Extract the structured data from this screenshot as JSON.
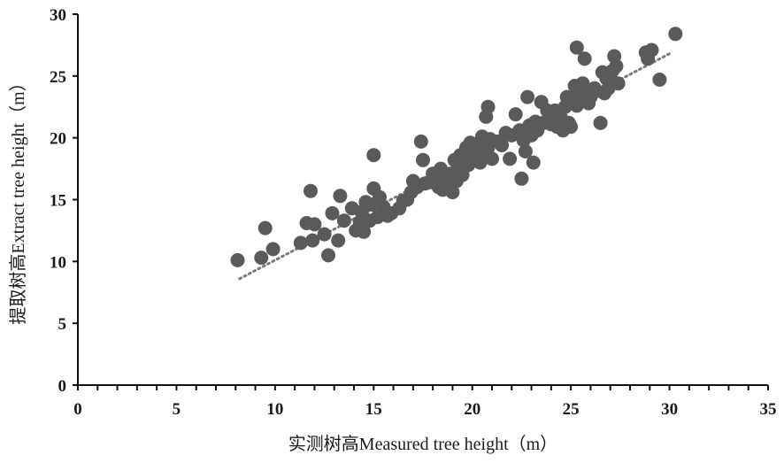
{
  "chart_data": {
    "type": "scatter",
    "title": "",
    "xlabel": "实测树高Measured tree height（m）",
    "ylabel": "提取树高Extract tree height（m）",
    "xlim": [
      0,
      35
    ],
    "ylim": [
      0,
      30
    ],
    "x_ticks": [
      "0",
      "5",
      "10",
      "15",
      "20",
      "25",
      "30",
      "35"
    ],
    "y_ticks": [
      "0",
      "5",
      "10",
      "15",
      "20",
      "25",
      "30"
    ],
    "grid": false,
    "legend": "none",
    "point_color": "#5a5a5a",
    "trendline": {
      "style": "dotted",
      "color": "#7a7a7a",
      "x": [
        8.2,
        30.0
      ],
      "y": [
        8.6,
        26.8
      ]
    },
    "series": [
      {
        "points": [
          [
            8.1,
            10.1
          ],
          [
            9.3,
            10.3
          ],
          [
            9.5,
            12.7
          ],
          [
            9.9,
            11.0
          ],
          [
            11.3,
            11.5
          ],
          [
            11.6,
            13.1
          ],
          [
            11.8,
            15.7
          ],
          [
            11.9,
            11.7
          ],
          [
            12.0,
            13.0
          ],
          [
            12.5,
            12.2
          ],
          [
            12.7,
            10.5
          ],
          [
            12.9,
            13.9
          ],
          [
            13.2,
            11.7
          ],
          [
            13.3,
            15.3
          ],
          [
            13.5,
            13.3
          ],
          [
            13.9,
            14.3
          ],
          [
            14.1,
            12.5
          ],
          [
            14.3,
            13.2
          ],
          [
            14.4,
            14.0
          ],
          [
            14.5,
            12.4
          ],
          [
            14.6,
            14.8
          ],
          [
            14.8,
            13.3
          ],
          [
            14.9,
            14.6
          ],
          [
            15.0,
            15.9
          ],
          [
            15.0,
            18.6
          ],
          [
            15.2,
            13.6
          ],
          [
            15.3,
            15.2
          ],
          [
            15.5,
            14.4
          ],
          [
            15.7,
            13.7
          ],
          [
            15.9,
            13.9
          ],
          [
            16.3,
            14.3
          ],
          [
            16.5,
            14.9
          ],
          [
            16.7,
            15.0
          ],
          [
            16.9,
            15.6
          ],
          [
            17.0,
            16.5
          ],
          [
            17.2,
            16.0
          ],
          [
            17.4,
            19.7
          ],
          [
            17.5,
            18.2
          ],
          [
            17.6,
            16.3
          ],
          [
            17.8,
            16.4
          ],
          [
            18.0,
            17.1
          ],
          [
            18.2,
            16.8
          ],
          [
            18.3,
            16.0
          ],
          [
            18.4,
            17.5
          ],
          [
            18.5,
            15.8
          ],
          [
            18.7,
            16.5
          ],
          [
            18.9,
            17.1
          ],
          [
            19.0,
            15.6
          ],
          [
            19.1,
            18.2
          ],
          [
            19.2,
            16.5
          ],
          [
            19.3,
            17.8
          ],
          [
            19.4,
            18.6
          ],
          [
            19.5,
            17.0
          ],
          [
            19.6,
            18.2
          ],
          [
            19.7,
            19.2
          ],
          [
            19.8,
            17.8
          ],
          [
            19.9,
            19.6
          ],
          [
            20.0,
            18.8
          ],
          [
            20.2,
            18.2
          ],
          [
            20.3,
            19.4
          ],
          [
            20.4,
            18.0
          ],
          [
            20.5,
            20.1
          ],
          [
            20.6,
            18.4
          ],
          [
            20.7,
            21.7
          ],
          [
            20.8,
            22.5
          ],
          [
            20.8,
            19.2
          ],
          [
            20.9,
            19.9
          ],
          [
            21.0,
            18.3
          ],
          [
            21.3,
            19.7
          ],
          [
            21.5,
            19.4
          ],
          [
            21.7,
            20.4
          ],
          [
            21.9,
            18.3
          ],
          [
            22.0,
            20.2
          ],
          [
            22.2,
            21.9
          ],
          [
            22.4,
            20.6
          ],
          [
            22.5,
            16.7
          ],
          [
            22.6,
            19.8
          ],
          [
            22.7,
            18.9
          ],
          [
            22.8,
            23.3
          ],
          [
            22.9,
            21.0
          ],
          [
            23.0,
            20.2
          ],
          [
            23.1,
            18.0
          ],
          [
            23.2,
            21.3
          ],
          [
            23.3,
            20.6
          ],
          [
            23.5,
            22.9
          ],
          [
            23.6,
            21.2
          ],
          [
            23.8,
            22.2
          ],
          [
            23.9,
            21.6
          ],
          [
            24.0,
            21.1
          ],
          [
            24.2,
            22.2
          ],
          [
            24.3,
            20.9
          ],
          [
            24.5,
            21.6
          ],
          [
            24.6,
            20.6
          ],
          [
            24.7,
            22.5
          ],
          [
            24.8,
            23.3
          ],
          [
            24.9,
            21.2
          ],
          [
            25.0,
            20.9
          ],
          [
            25.1,
            22.9
          ],
          [
            25.2,
            24.2
          ],
          [
            25.3,
            27.3
          ],
          [
            25.3,
            22.6
          ],
          [
            25.4,
            23.4
          ],
          [
            25.5,
            23.1
          ],
          [
            25.6,
            24.4
          ],
          [
            25.7,
            26.4
          ],
          [
            25.8,
            23.8
          ],
          [
            25.9,
            22.8
          ],
          [
            26.0,
            23.3
          ],
          [
            26.2,
            24.0
          ],
          [
            26.3,
            23.8
          ],
          [
            26.5,
            21.2
          ],
          [
            26.6,
            25.3
          ],
          [
            26.7,
            23.6
          ],
          [
            26.8,
            24.8
          ],
          [
            26.9,
            24.0
          ],
          [
            27.1,
            25.4
          ],
          [
            27.2,
            26.6
          ],
          [
            27.3,
            25.8
          ],
          [
            27.4,
            24.4
          ],
          [
            28.8,
            26.9
          ],
          [
            28.9,
            26.4
          ],
          [
            29.1,
            27.1
          ],
          [
            29.5,
            24.7
          ],
          [
            30.3,
            28.4
          ]
        ]
      }
    ]
  }
}
